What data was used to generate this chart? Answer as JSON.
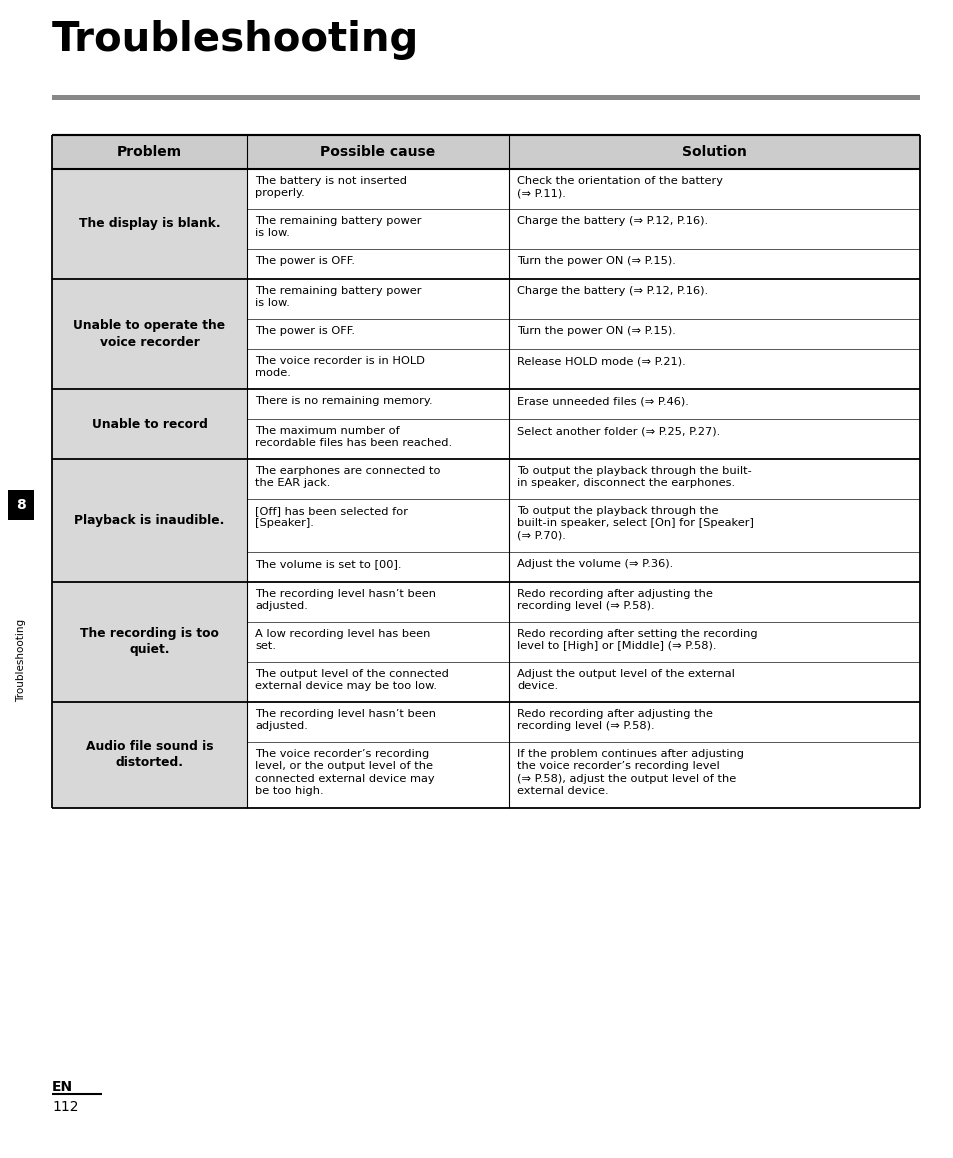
{
  "title": "Troubleshooting",
  "page_num": "112",
  "lang": "EN",
  "chapter_num": "8",
  "chapter_label": "Troubleshooting",
  "rows": [
    {
      "problem": "The display is blank.",
      "causes": [
        "The battery is not inserted\nproperly.",
        "The remaining battery power\nis low.",
        "The power is OFF."
      ],
      "solutions": [
        "Check the orientation of the battery\n(⇒ P.11).",
        "Charge the battery (⇒ P.12, P.16).",
        "Turn the power ON (⇒ P.15)."
      ]
    },
    {
      "problem": "Unable to operate the\nvoice recorder",
      "causes": [
        "The remaining battery power\nis low.",
        "The power is OFF.",
        "The voice recorder is in HOLD\nmode."
      ],
      "solutions": [
        "Charge the battery (⇒ P.12, P.16).",
        "Turn the power ON (⇒ P.15).",
        "Release HOLD mode (⇒ P.21)."
      ]
    },
    {
      "problem": "Unable to record",
      "causes": [
        "There is no remaining memory.",
        "The maximum number of\nrecordable files has been reached."
      ],
      "solutions": [
        "Erase unneeded files (⇒ P.46).",
        "Select another folder (⇒ P.25, P.27)."
      ]
    },
    {
      "problem": "Playback is inaudible.",
      "causes": [
        "The earphones are connected to\nthe EAR jack.",
        "[Off] has been selected for\n[Speaker].",
        "The volume is set to [00]."
      ],
      "solutions": [
        "To output the playback through the built-\nin speaker, disconnect the earphones.",
        "To output the playback through the\nbuilt-in speaker, select [On] for [Speaker]\n(⇒ P.70).",
        "Adjust the volume (⇒ P.36)."
      ]
    },
    {
      "problem": "The recording is too\nquiet.",
      "causes": [
        "The recording level hasn’t been\nadjusted.",
        "A low recording level has been\nset.",
        "The output level of the connected\nexternal device may be too low."
      ],
      "solutions": [
        "Redo recording after adjusting the\nrecording level (⇒ P.58).",
        "Redo recording after setting the recording\nlevel to [High] or [Middle] (⇒ P.58).",
        "Adjust the output level of the external\ndevice."
      ]
    },
    {
      "problem": "Audio file sound is\ndistorted.",
      "causes": [
        "The recording level hasn’t been\nadjusted.",
        "The voice recorder’s recording\nlevel, or the output level of the\nconnected external device may\nbe too high."
      ],
      "solutions": [
        "Redo recording after adjusting the\nrecording level (⇒ P.58).",
        "If the problem continues after adjusting\nthe voice recorder’s recording level\n(⇒ P.58), adjust the output level of the\nexternal device."
      ]
    }
  ]
}
